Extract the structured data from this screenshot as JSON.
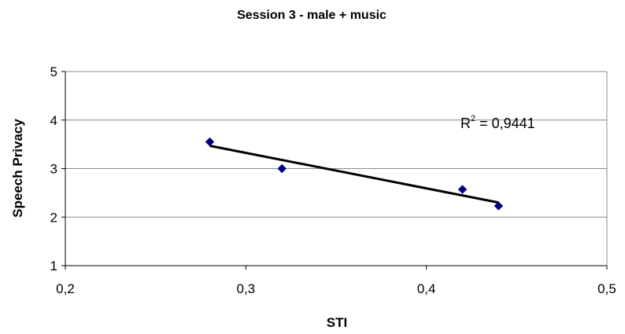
{
  "chart_data": {
    "type": "scatter",
    "title": "Session 3 - male + music",
    "xlabel": "STI",
    "ylabel": "Speech Privacy",
    "xlim": [
      0.2,
      0.5
    ],
    "ylim": [
      1,
      5
    ],
    "x_ticks": [
      0.2,
      0.3,
      0.4,
      0.5
    ],
    "x_tick_labels": [
      "0,2",
      "0,3",
      "0,4",
      "0,5"
    ],
    "y_ticks": [
      1,
      2,
      3,
      4,
      5
    ],
    "y_tick_labels": [
      "1",
      "2",
      "3",
      "4",
      "5"
    ],
    "grid": "horizontal",
    "series": [
      {
        "x": [
          0.28,
          0.32,
          0.42,
          0.44
        ],
        "y": [
          3.55,
          3.0,
          2.57,
          2.23
        ],
        "color": "#000080",
        "marker": "diamond"
      }
    ],
    "trendline": {
      "type": "linear",
      "x": [
        0.28,
        0.44
      ],
      "y": [
        3.47,
        2.3
      ],
      "color": "#000000"
    },
    "annotations": [
      {
        "base": "R",
        "sup": "2",
        "text": " = 0,9441"
      }
    ]
  }
}
